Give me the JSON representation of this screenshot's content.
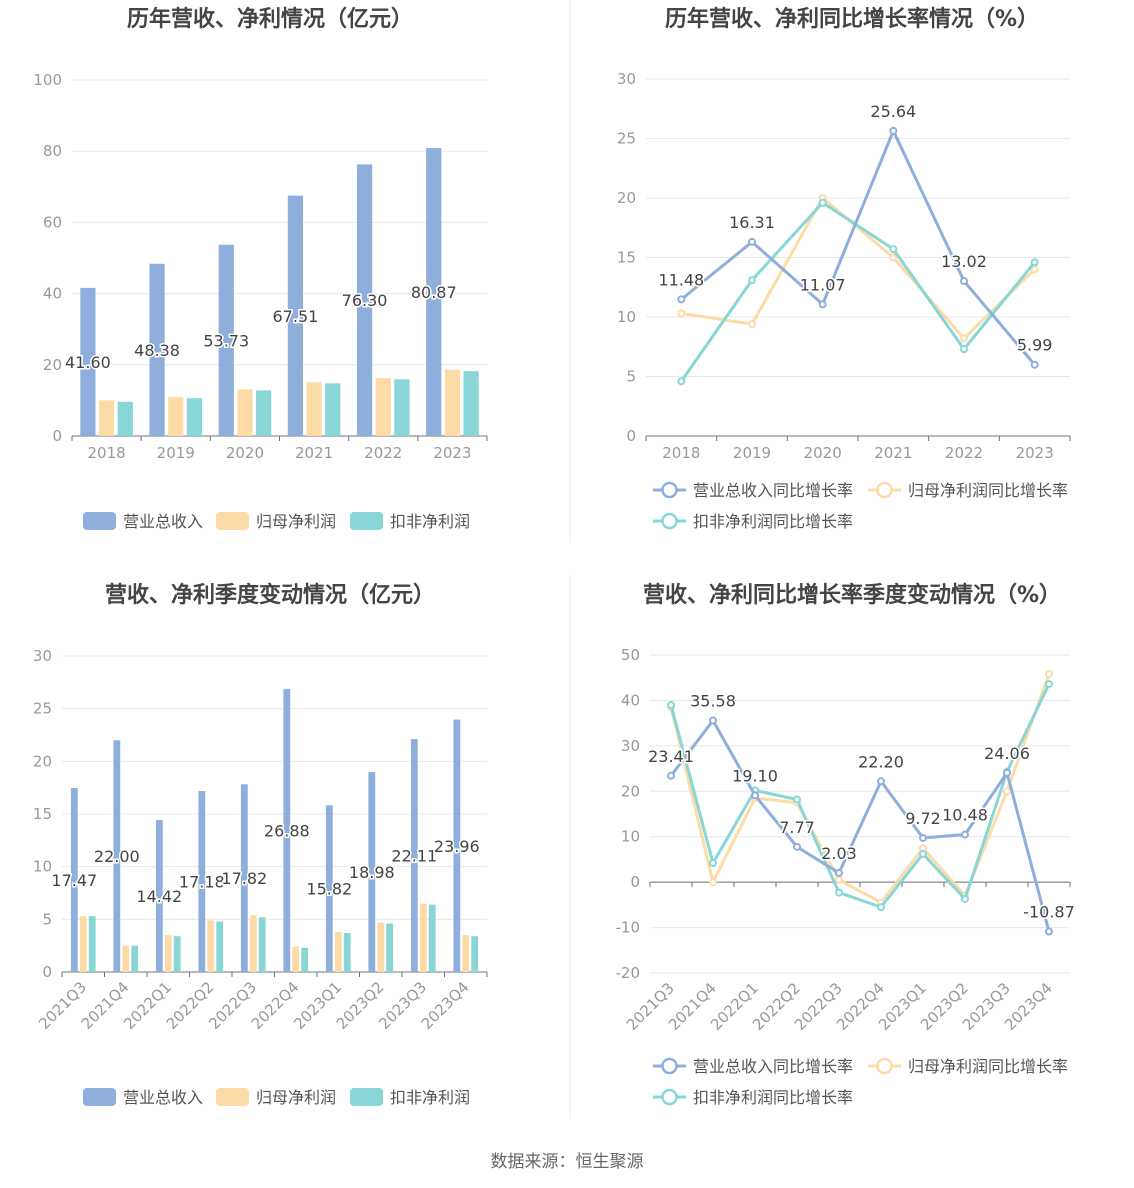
{
  "colors": {
    "revenue": "#8eaedc",
    "net_profit": "#fcdba6",
    "deducted_profit": "#88d6d6",
    "grid": "#e6e8ef",
    "axis": "#6e7079",
    "tick_text": "#999999",
    "label_text": "#444444",
    "title_text": "#444444"
  },
  "legend_labels": {
    "revenue": "营业总收入",
    "net_profit": "归母净利润",
    "deducted_profit": "扣非净利润",
    "revenue_growth": "营业总收入同比增长率",
    "net_profit_growth": "归母净利润同比增长率",
    "deducted_profit_growth": "扣非净利润同比增长率"
  },
  "source": "数据来源：恒生聚源",
  "chart_data": [
    {
      "id": "annual_bar",
      "type": "bar",
      "title": "历年营收、净利情况（亿元）",
      "categories": [
        "2018",
        "2019",
        "2020",
        "2021",
        "2022",
        "2023"
      ],
      "ylim": [
        0,
        100
      ],
      "yticks": [
        0,
        20,
        40,
        60,
        80,
        100
      ],
      "grid": true,
      "legend": "bottom",
      "series": [
        {
          "key": "revenue",
          "name": "营业总收入",
          "values": [
            41.6,
            48.38,
            53.73,
            67.51,
            76.3,
            80.87
          ],
          "labels": [
            "41.60",
            "48.38",
            "53.73",
            "67.51",
            "76.30",
            "80.87"
          ]
        },
        {
          "key": "net_profit",
          "name": "归母净利润",
          "values": [
            10.0,
            10.9,
            13.1,
            15.1,
            16.3,
            18.6
          ]
        },
        {
          "key": "deducted_profit",
          "name": "扣非净利润",
          "values": [
            9.6,
            10.6,
            12.8,
            14.8,
            15.9,
            18.2
          ]
        }
      ]
    },
    {
      "id": "annual_line",
      "type": "line",
      "title": "历年营收、净利同比增长率情况（%）",
      "categories": [
        "2018",
        "2019",
        "2020",
        "2021",
        "2022",
        "2023"
      ],
      "ylim": [
        0,
        30
      ],
      "yticks": [
        0,
        5,
        10,
        15,
        20,
        25,
        30
      ],
      "grid": true,
      "legend": "bottom",
      "series": [
        {
          "key": "revenue_growth",
          "name": "营业总收入同比增长率",
          "values": [
            11.48,
            16.31,
            11.07,
            25.64,
            13.02,
            5.99
          ],
          "labels": [
            "11.48",
            "16.31",
            "11.07",
            "25.64",
            "13.02",
            "5.99"
          ]
        },
        {
          "key": "net_profit_growth",
          "name": "归母净利润同比增长率",
          "values": [
            10.3,
            9.4,
            20.0,
            15.0,
            8.2,
            14.0
          ]
        },
        {
          "key": "deducted_profit_growth",
          "name": "扣非净利润同比增长率",
          "values": [
            4.6,
            13.1,
            19.6,
            15.7,
            7.3,
            14.6
          ]
        }
      ]
    },
    {
      "id": "quarterly_bar",
      "type": "bar",
      "title": "营收、净利季度变动情况（亿元）",
      "categories": [
        "2021Q3",
        "2021Q4",
        "2022Q1",
        "2022Q2",
        "2022Q3",
        "2022Q4",
        "2023Q1",
        "2023Q2",
        "2023Q3",
        "2023Q4"
      ],
      "ylim": [
        0,
        30
      ],
      "yticks": [
        0,
        5,
        10,
        15,
        20,
        25,
        30
      ],
      "grid": true,
      "legend": "bottom",
      "series": [
        {
          "key": "revenue",
          "name": "营业总收入",
          "values": [
            17.47,
            22.0,
            14.42,
            17.18,
            17.82,
            26.88,
            15.82,
            18.98,
            22.11,
            23.96
          ],
          "labels": [
            "17.47",
            "22.00",
            "14.42",
            "17.18",
            "17.82",
            "26.88",
            "15.82",
            "18.98",
            "22.11",
            "23.96"
          ]
        },
        {
          "key": "net_profit",
          "name": "归母净利润",
          "values": [
            5.3,
            2.5,
            3.5,
            4.9,
            5.4,
            2.4,
            3.8,
            4.7,
            6.5,
            3.5
          ]
        },
        {
          "key": "deducted_profit",
          "name": "扣非净利润",
          "values": [
            5.3,
            2.5,
            3.4,
            4.8,
            5.2,
            2.3,
            3.7,
            4.6,
            6.4,
            3.4
          ]
        }
      ]
    },
    {
      "id": "quarterly_line",
      "type": "line",
      "title": "营收、净利同比增长率季度变动情况（%）",
      "categories": [
        "2021Q3",
        "2021Q4",
        "2022Q1",
        "2022Q2",
        "2022Q3",
        "2022Q4",
        "2023Q1",
        "2023Q2",
        "2023Q3",
        "2023Q4"
      ],
      "ylim": [
        -20,
        50
      ],
      "yticks": [
        -20,
        -10,
        0,
        10,
        20,
        30,
        40,
        50
      ],
      "grid": true,
      "legend": "bottom",
      "series": [
        {
          "key": "revenue_growth",
          "name": "营业总收入同比增长率",
          "values": [
            23.41,
            35.58,
            19.1,
            7.77,
            2.03,
            22.2,
            9.72,
            10.48,
            24.06,
            -10.87
          ],
          "labels": [
            "23.41",
            "35.58",
            "19.10",
            "7.77",
            "2.03",
            "22.20",
            "9.72",
            "10.48",
            "24.06",
            "-10.87"
          ]
        },
        {
          "key": "net_profit_growth",
          "name": "归母净利润同比增长率",
          "values": [
            38.5,
            0.0,
            18.5,
            17.5,
            0.5,
            -4.5,
            7.5,
            -3.0,
            20.0,
            45.8
          ]
        },
        {
          "key": "deducted_profit_growth",
          "name": "扣非净利润同比增长率",
          "values": [
            39.0,
            4.2,
            20.2,
            18.2,
            -2.3,
            -5.5,
            6.2,
            -3.7,
            24.3,
            43.6
          ]
        }
      ]
    }
  ]
}
